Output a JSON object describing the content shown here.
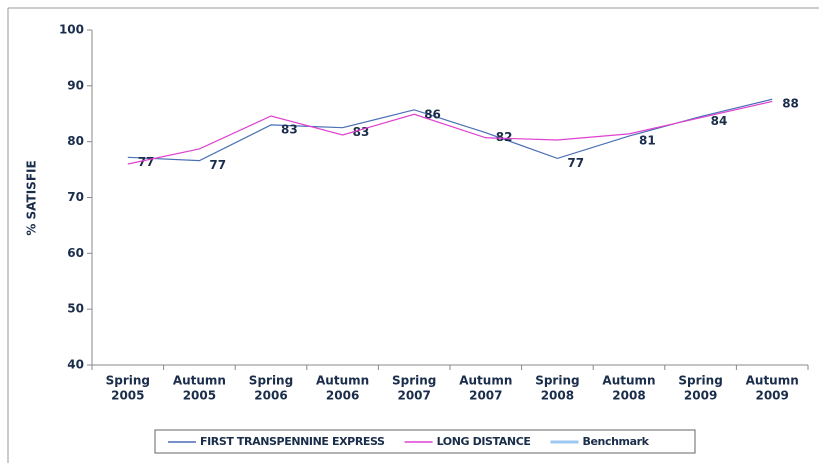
{
  "chart_data": {
    "type": "line",
    "y_label": "% SATISFIE",
    "categories": [
      [
        "Spring",
        "2005"
      ],
      [
        "Autumn",
        "2005"
      ],
      [
        "Spring",
        "2006"
      ],
      [
        "Autumn",
        "2006"
      ],
      [
        "Spring",
        "2007"
      ],
      [
        "Autumn",
        "2007"
      ],
      [
        "Spring",
        "2008"
      ],
      [
        "Autumn",
        "2008"
      ],
      [
        "Spring",
        "2009"
      ],
      [
        "Autumn",
        "2009"
      ]
    ],
    "series": [
      {
        "name": "FIRST TRANSPENNINE EXPRESS",
        "color": "#4a6fb5",
        "values": [
          77.2,
          76.6,
          83,
          82.5,
          85.7,
          81.6,
          77,
          81,
          84.5,
          87.6
        ],
        "value_labels": [
          "77",
          "77",
          "83",
          "83",
          "86",
          "82",
          "77",
          "81",
          "84",
          "88"
        ]
      },
      {
        "name": "LONG DISTANCE",
        "color": "#e040d0",
        "values": [
          76,
          78.7,
          84.6,
          81.2,
          84.9,
          80.7,
          80.3,
          81.4,
          84.3,
          87.2
        ]
      },
      {
        "name": "Benchmark",
        "color": "#9ec8f0",
        "values": [
          null,
          null,
          null,
          null,
          null,
          null,
          null,
          null,
          null,
          null
        ]
      }
    ],
    "ylim": [
      40,
      100
    ],
    "yticks": [
      40,
      50,
      60,
      70,
      80,
      90,
      100
    ],
    "grid": false
  }
}
